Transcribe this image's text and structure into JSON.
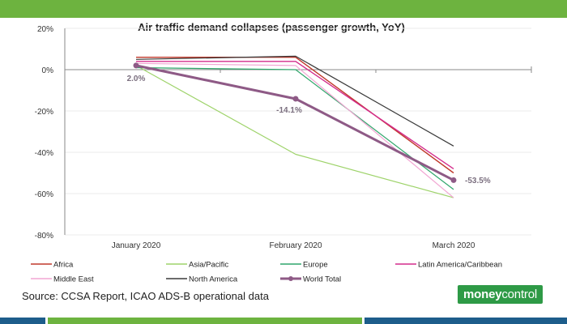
{
  "theme": {
    "top_band_color": "#6db33f",
    "bottom_band_left": "#1d5d8b",
    "bottom_band_mid": "#6db33f",
    "bottom_band_right": "#1d5d8b",
    "logo_bg": "#2e9a46"
  },
  "source_note": "Source: CCSA Report, ICAO ADS-B operational data",
  "logo": {
    "part1": "money",
    "part2": "control"
  },
  "chart_data": {
    "type": "line",
    "title": "Air traffic demand collapses (passenger growth, YoY)",
    "xlabel": "",
    "ylabel": "",
    "categories": [
      "January 2020",
      "February 2020",
      "March 2020"
    ],
    "ylim": [
      -80,
      20
    ],
    "yticks": [
      20,
      0,
      -20,
      -40,
      -60,
      -80
    ],
    "ytick_labels": [
      "20%",
      "0%",
      "-20%",
      "-40%",
      "-60%",
      "-80%"
    ],
    "series": [
      {
        "name": "Africa",
        "color": "#c0392b",
        "width": 1.4,
        "values": [
          6,
          6,
          -50
        ],
        "markers": false
      },
      {
        "name": "Asia/Pacific",
        "color": "#9ed36a",
        "width": 1.2,
        "values": [
          2,
          -41,
          -62
        ],
        "markers": false
      },
      {
        "name": "Europe",
        "color": "#2fa66b",
        "width": 1.2,
        "values": [
          1,
          0,
          -58
        ],
        "markers": false
      },
      {
        "name": "Latin America/Caribbean",
        "color": "#d42c8c",
        "width": 1.4,
        "values": [
          4,
          4,
          -48
        ],
        "markers": false
      },
      {
        "name": "Middle East",
        "color": "#f2a6d3",
        "width": 1.2,
        "values": [
          3,
          2,
          -62
        ],
        "markers": false
      },
      {
        "name": "North America",
        "color": "#3a3a3a",
        "width": 1.2,
        "values": [
          5,
          6.5,
          -37
        ],
        "markers": false
      },
      {
        "name": "World Total",
        "color": "#8e5a86",
        "width": 3,
        "values": [
          2.0,
          -14.1,
          -53.5
        ],
        "markers": true
      }
    ],
    "annotations": [
      "2.0%",
      "-14.1%",
      "-53.5%"
    ],
    "legend_position": "bottom"
  }
}
